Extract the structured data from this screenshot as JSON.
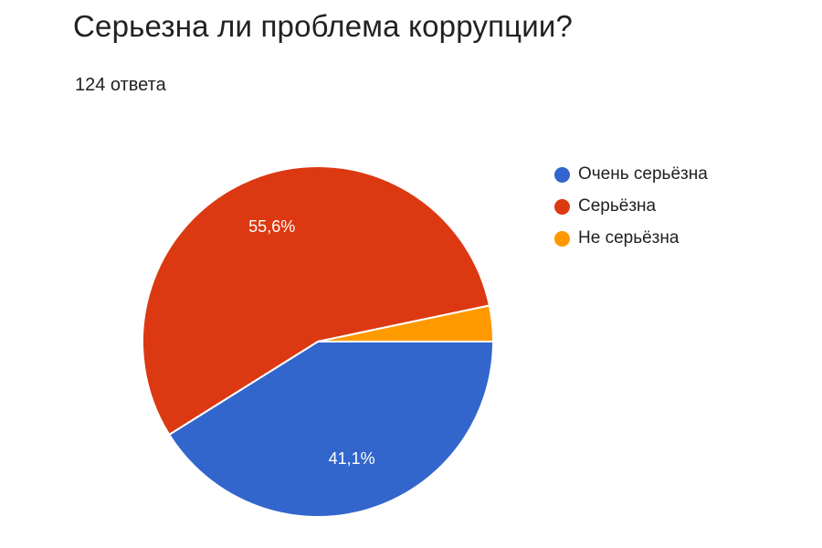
{
  "chart_data": {
    "type": "pie",
    "title": "Серьезна ли проблема коррупции?",
    "subtitle": "124 ответа",
    "categories": [
      "Очень серьёзна",
      "Серьёзна",
      "Не серьёзна"
    ],
    "values": [
      41.1,
      55.6,
      3.3
    ],
    "data_labels": [
      "41,1%",
      "55,6%",
      ""
    ],
    "colors": [
      "#3366cc",
      "#dc3912",
      "#ff9900"
    ],
    "legend_position": "right"
  }
}
